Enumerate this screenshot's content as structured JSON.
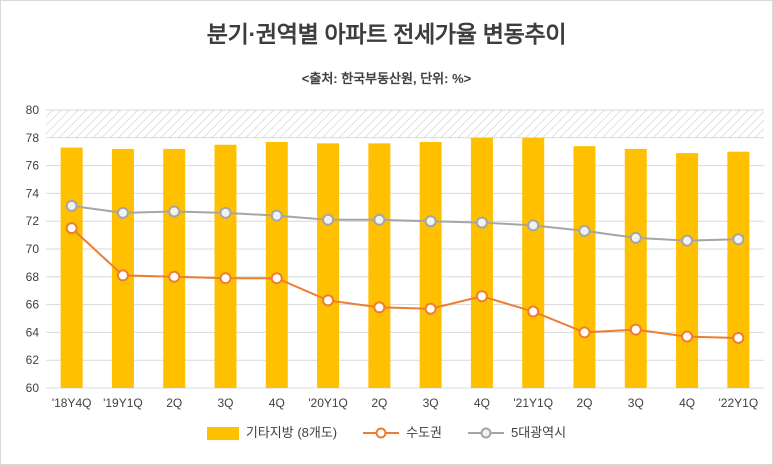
{
  "page": {
    "title": "분기·권역별 아파트 전세가율 변동추이",
    "subtitle": "<출처: 한국부동산원, 단위: %>"
  },
  "chart_data": {
    "type": "combo",
    "categories": [
      "'18Y4Q",
      "'19Y1Q",
      "2Q",
      "3Q",
      "4Q",
      "'20Y1Q",
      "2Q",
      "3Q",
      "4Q",
      "'21Y1Q",
      "2Q",
      "3Q",
      "4Q",
      "'22Y1Q"
    ],
    "series": [
      {
        "name": "기타지방 (8개도)",
        "type": "bar",
        "color": "#FFC000",
        "values": [
          77.3,
          77.2,
          77.2,
          77.5,
          77.7,
          77.6,
          77.6,
          77.7,
          78.0,
          78.0,
          77.4,
          77.2,
          76.9,
          77.0
        ]
      },
      {
        "name": "수도권",
        "type": "line",
        "color": "#ED7D31",
        "marker_fill": "#FFFFFF",
        "values": [
          71.5,
          68.1,
          68.0,
          67.9,
          67.9,
          66.3,
          65.8,
          65.7,
          66.6,
          65.5,
          64.0,
          64.2,
          63.7,
          63.6
        ]
      },
      {
        "name": "5대광역시",
        "type": "line",
        "color": "#A5A5A5",
        "marker_fill": "#F2F2F2",
        "values": [
          73.1,
          72.6,
          72.7,
          72.6,
          72.4,
          72.1,
          72.1,
          72.0,
          71.9,
          71.7,
          71.3,
          70.8,
          70.6,
          70.7
        ]
      }
    ],
    "ylim": [
      60,
      80
    ],
    "ytick_step": 2,
    "yticks": [
      60,
      62,
      64,
      66,
      68,
      70,
      72,
      74,
      76,
      78,
      80
    ],
    "grid": true,
    "gridline_color": "#D9D9D9",
    "hatch_band": {
      "from": 78,
      "to": 80,
      "style": "diagonal-hatch",
      "line_color": "#CFCFCF"
    },
    "axis_label_color": "#404040",
    "legend_position": "bottom"
  }
}
